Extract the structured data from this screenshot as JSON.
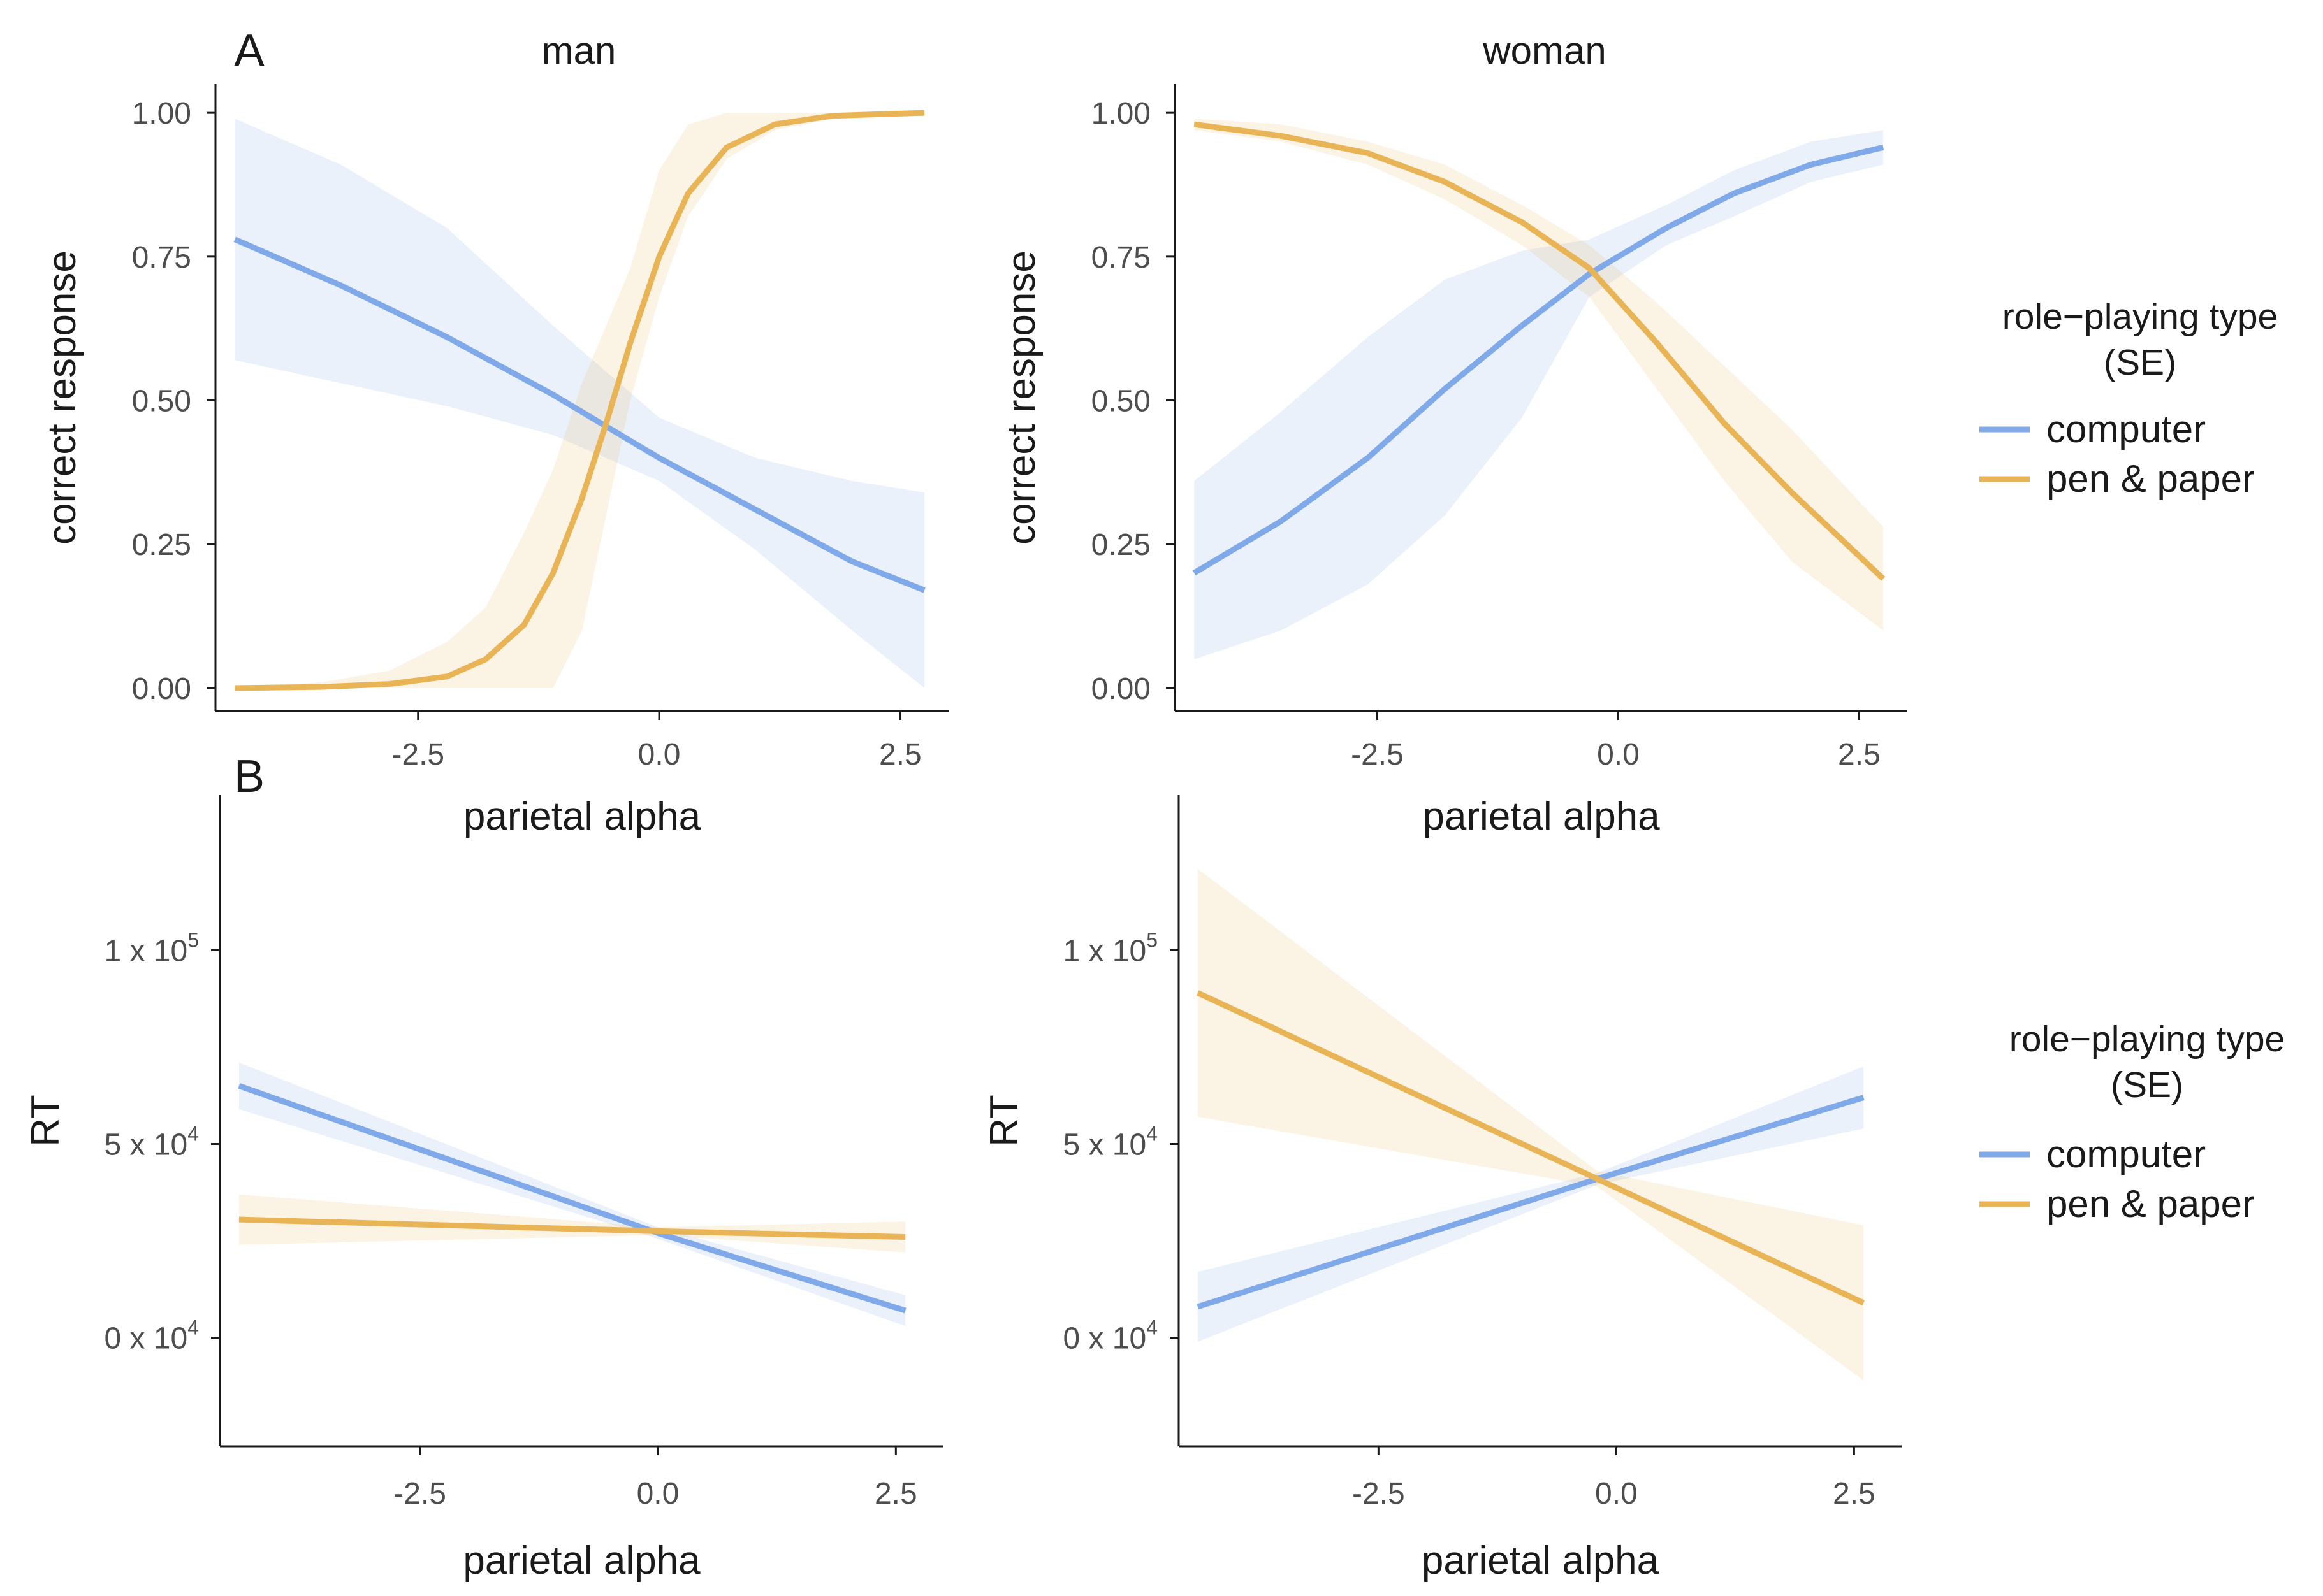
{
  "figure": {
    "panel_labels": [
      "A",
      "B"
    ]
  },
  "legend": {
    "title_line1": "role−playing type",
    "title_line2": "(SE)",
    "items": [
      {
        "label": "computer",
        "color": "#7FA9E8"
      },
      {
        "label": "pen & paper",
        "color": "#E9B456"
      }
    ]
  },
  "chart_data": [
    {
      "id": "A-man",
      "type": "line",
      "panel": "A",
      "title": "man",
      "xlabel": "parietal alpha",
      "ylabel": "correct response",
      "xlim": [
        -4.6,
        3.0
      ],
      "ylim": [
        -0.04,
        1.05
      ],
      "xticks": [
        -2.5,
        0.0,
        2.5
      ],
      "xtick_labels": [
        "-2.5",
        "0.0",
        "2.5"
      ],
      "yticks": [
        0,
        0.25,
        0.5,
        0.75,
        1.0
      ],
      "ytick_labels": [
        "0.00",
        "0.25",
        "0.50",
        "0.75",
        "1.00"
      ],
      "series": [
        {
          "name": "computer",
          "color": "#7FA9E8",
          "x": [
            -4.4,
            -3.3,
            -2.2,
            -1.1,
            0.0,
            1.0,
            2.0,
            2.75
          ],
          "y": [
            0.78,
            0.7,
            0.61,
            0.51,
            0.4,
            0.31,
            0.22,
            0.17
          ],
          "lower": [
            0.57,
            0.53,
            0.49,
            0.44,
            0.36,
            0.24,
            0.1,
            0.0
          ],
          "upper": [
            0.99,
            0.91,
            0.8,
            0.63,
            0.47,
            0.4,
            0.36,
            0.34
          ]
        },
        {
          "name": "pen & paper",
          "color": "#E9B456",
          "x": [
            -4.4,
            -3.5,
            -2.8,
            -2.2,
            -1.8,
            -1.4,
            -1.1,
            -0.8,
            -0.55,
            -0.3,
            0.0,
            0.3,
            0.7,
            1.2,
            1.8,
            2.75
          ],
          "y": [
            0.0,
            0.002,
            0.007,
            0.02,
            0.05,
            0.11,
            0.2,
            0.33,
            0.46,
            0.6,
            0.75,
            0.86,
            0.94,
            0.98,
            0.995,
            1.0
          ],
          "lower": [
            0.0,
            0.0,
            0.0,
            0.0,
            0.0,
            0.0,
            0.0,
            0.1,
            0.3,
            0.5,
            0.68,
            0.82,
            0.92,
            0.97,
            0.99,
            1.0
          ],
          "upper": [
            0.0,
            0.01,
            0.03,
            0.08,
            0.14,
            0.27,
            0.38,
            0.53,
            0.63,
            0.73,
            0.9,
            0.98,
            1.0,
            1.0,
            1.0,
            1.0
          ]
        }
      ]
    },
    {
      "id": "A-woman",
      "type": "line",
      "panel": "A",
      "title": "woman",
      "xlabel": "parietal alpha",
      "ylabel": "correct response",
      "xlim": [
        -4.6,
        3.0
      ],
      "ylim": [
        -0.04,
        1.05
      ],
      "xticks": [
        -2.5,
        0.0,
        2.5
      ],
      "xtick_labels": [
        "-2.5",
        "0.0",
        "2.5"
      ],
      "yticks": [
        0,
        0.25,
        0.5,
        0.75,
        1.0
      ],
      "ytick_labels": [
        "0.00",
        "0.25",
        "0.50",
        "0.75",
        "1.00"
      ],
      "series": [
        {
          "name": "computer",
          "color": "#7FA9E8",
          "x": [
            -4.4,
            -3.5,
            -2.6,
            -1.8,
            -1.0,
            -0.3,
            0.5,
            1.2,
            2.0,
            2.75
          ],
          "y": [
            0.2,
            0.29,
            0.4,
            0.52,
            0.63,
            0.72,
            0.8,
            0.86,
            0.91,
            0.94
          ],
          "lower": [
            0.05,
            0.1,
            0.18,
            0.3,
            0.47,
            0.68,
            0.77,
            0.82,
            0.88,
            0.91
          ],
          "upper": [
            0.36,
            0.48,
            0.61,
            0.71,
            0.76,
            0.78,
            0.84,
            0.9,
            0.95,
            0.97
          ]
        },
        {
          "name": "pen & paper",
          "color": "#E9B456",
          "x": [
            -4.4,
            -3.5,
            -2.6,
            -1.8,
            -1.0,
            -0.3,
            0.4,
            1.1,
            1.8,
            2.75
          ],
          "y": [
            0.98,
            0.96,
            0.93,
            0.88,
            0.81,
            0.73,
            0.6,
            0.46,
            0.34,
            0.19
          ],
          "lower": [
            0.97,
            0.95,
            0.91,
            0.85,
            0.77,
            0.68,
            0.52,
            0.36,
            0.22,
            0.1
          ],
          "upper": [
            0.99,
            0.98,
            0.95,
            0.91,
            0.84,
            0.77,
            0.67,
            0.56,
            0.45,
            0.28
          ]
        }
      ]
    },
    {
      "id": "B-man",
      "type": "line",
      "panel": "B",
      "title": "",
      "xlabel": "parietal alpha",
      "ylabel": "RT",
      "xlim": [
        -4.6,
        3.0
      ],
      "ylim": [
        -28000,
        140000
      ],
      "xticks": [
        -2.5,
        0.0,
        2.5
      ],
      "xtick_labels": [
        "-2.5",
        "0.0",
        "2.5"
      ],
      "yticks": [
        0,
        50000,
        100000
      ],
      "ytick_labels": [
        {
          "base": "0 x 10",
          "exp": "4"
        },
        {
          "base": "5 x 10",
          "exp": "4"
        },
        {
          "base": "1 x 10",
          "exp": "5"
        }
      ],
      "series": [
        {
          "name": "computer",
          "color": "#7FA9E8",
          "x": [
            -4.4,
            0.0,
            2.6
          ],
          "y": [
            65000,
            27000,
            7000
          ],
          "lower": [
            59000,
            25500,
            3000
          ],
          "upper": [
            71000,
            28500,
            11000
          ]
        },
        {
          "name": "pen & paper",
          "color": "#E9B456",
          "x": [
            -4.4,
            0.0,
            2.6
          ],
          "y": [
            30500,
            27500,
            26000
          ],
          "lower": [
            24000,
            26500,
            22000
          ],
          "upper": [
            37000,
            28500,
            30000
          ]
        }
      ]
    },
    {
      "id": "B-woman",
      "type": "line",
      "panel": "B",
      "title": "",
      "xlabel": "parietal alpha",
      "ylabel": "RT",
      "xlim": [
        -4.6,
        3.0
      ],
      "ylim": [
        -28000,
        140000
      ],
      "xticks": [
        -2.5,
        0.0,
        2.5
      ],
      "xtick_labels": [
        "-2.5",
        "0.0",
        "2.5"
      ],
      "yticks": [
        0,
        50000,
        100000
      ],
      "ytick_labels": [
        {
          "base": "0 x 10",
          "exp": "4"
        },
        {
          "base": "5 x 10",
          "exp": "4"
        },
        {
          "base": "1 x 10",
          "exp": "5"
        }
      ],
      "series": [
        {
          "name": "computer",
          "color": "#7FA9E8",
          "x": [
            -4.4,
            -0.2,
            2.6
          ],
          "y": [
            8000,
            41000,
            62000
          ],
          "lower": [
            -1000,
            39500,
            54000
          ],
          "upper": [
            17000,
            42500,
            70000
          ]
        },
        {
          "name": "pen & paper",
          "color": "#E9B456",
          "x": [
            -4.4,
            -0.2,
            2.6
          ],
          "y": [
            89000,
            41000,
            9000
          ],
          "lower": [
            57000,
            39000,
            -11000
          ],
          "upper": [
            121000,
            43000,
            29000
          ]
        }
      ]
    }
  ]
}
